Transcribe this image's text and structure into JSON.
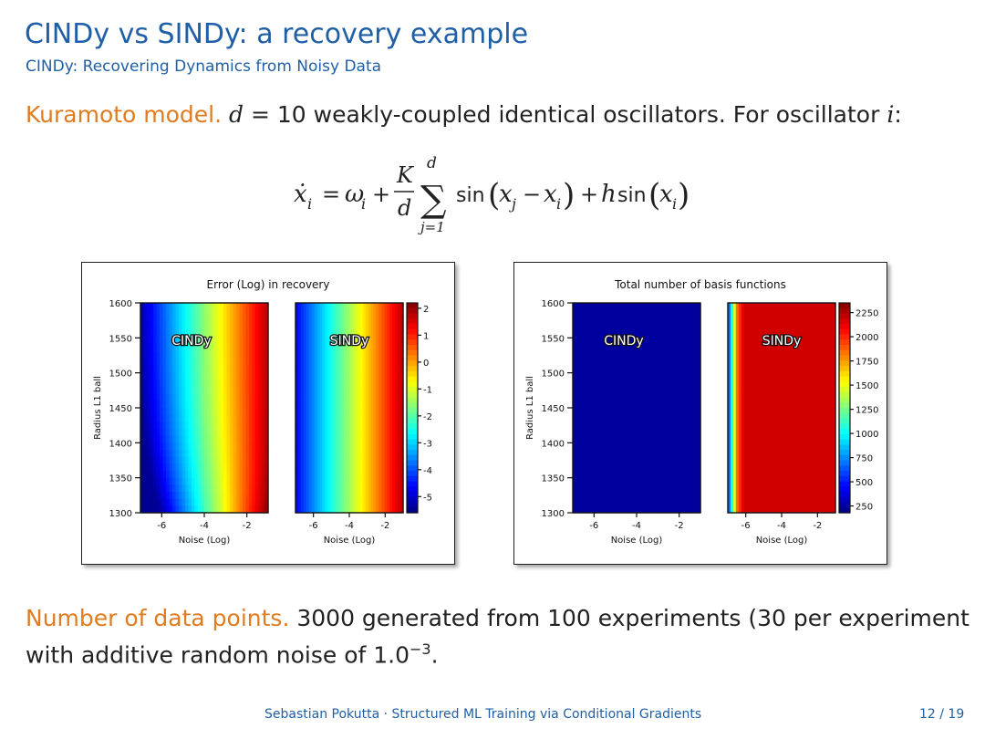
{
  "slide": {
    "title": "CINDy vs SINDy: a recovery example",
    "subtitle": "CINDy: Recovering Dynamics from Noisy Data",
    "intro": {
      "lead": "Kuramoto model.",
      "pre_var": " ",
      "var_d": "d",
      "mid": " = 10 weakly-coupled identical oscillators. For oscillator ",
      "var_i": "i",
      "colon": ":"
    },
    "equation": {
      "lhs": "ẋ",
      "lhs_sub": "i",
      "eq": "=",
      "omega": "ω",
      "omega_sub": "i",
      "plus1": "+",
      "frac_num": "K",
      "frac_den": "d",
      "sum_sym": "∑",
      "sum_upper": "d",
      "sum_lower": "j=1",
      "sin1": "sin",
      "paren_open": "(",
      "x_j": "x",
      "x_j_sub": "j",
      "minus": "−",
      "x_i": "x",
      "x_i_sub": "i",
      "paren_close": ")",
      "plus2": "+",
      "h": "h",
      "sin2": "sin",
      "paren2_open": "(",
      "x_i2": "x",
      "x_i2_sub": "i",
      "paren2_close": ")"
    },
    "data_points": {
      "lead": "Number of data points.",
      "text": " 3000 generated from 100 experiments (30 per experiment",
      "line2": "with additive random noise of 1.0",
      "exponent": "−3",
      "end": "."
    },
    "footer": {
      "center": "Sebastian Pokutta · Structured ML Training via Conditional Gradients",
      "page": "12 / 19"
    }
  },
  "chart_data": [
    {
      "type": "heatmap",
      "title": "Error (Log) in recovery",
      "ylabel": "Radius L1 ball",
      "xlabel": "Noise (Log)",
      "panels": [
        "CINDy",
        "SINDy"
      ],
      "xticks": [
        "-6",
        "-4",
        "-2"
      ],
      "yticks": [
        "1600",
        "1550",
        "1500",
        "1450",
        "1400",
        "1350",
        "1300"
      ],
      "xlim": [
        -7,
        -1
      ],
      "ylim": [
        1300,
        1600
      ],
      "colorbar_ticks": [
        "2",
        "1",
        "0",
        "-1",
        "-2",
        "-3",
        "-4",
        "-5"
      ],
      "colorbar_range": [
        -5.6,
        2.2
      ],
      "colormap": "jet"
    },
    {
      "type": "heatmap",
      "title": "Total number of basis functions",
      "ylabel": "Radius L1 ball",
      "xlabel": "Noise (Log)",
      "panels": [
        "CINDy",
        "SINDy"
      ],
      "xticks": [
        "-6",
        "-4",
        "-2"
      ],
      "yticks": [
        "1600",
        "1550",
        "1500",
        "1450",
        "1400",
        "1350",
        "1300"
      ],
      "xlim": [
        -7,
        -1
      ],
      "ylim": [
        1300,
        1600
      ],
      "colorbar_ticks": [
        "2250",
        "2000",
        "1750",
        "1500",
        "1250",
        "1000",
        "750",
        "500",
        "250"
      ],
      "colorbar_range": [
        180,
        2350
      ],
      "colormap": "jet"
    }
  ]
}
